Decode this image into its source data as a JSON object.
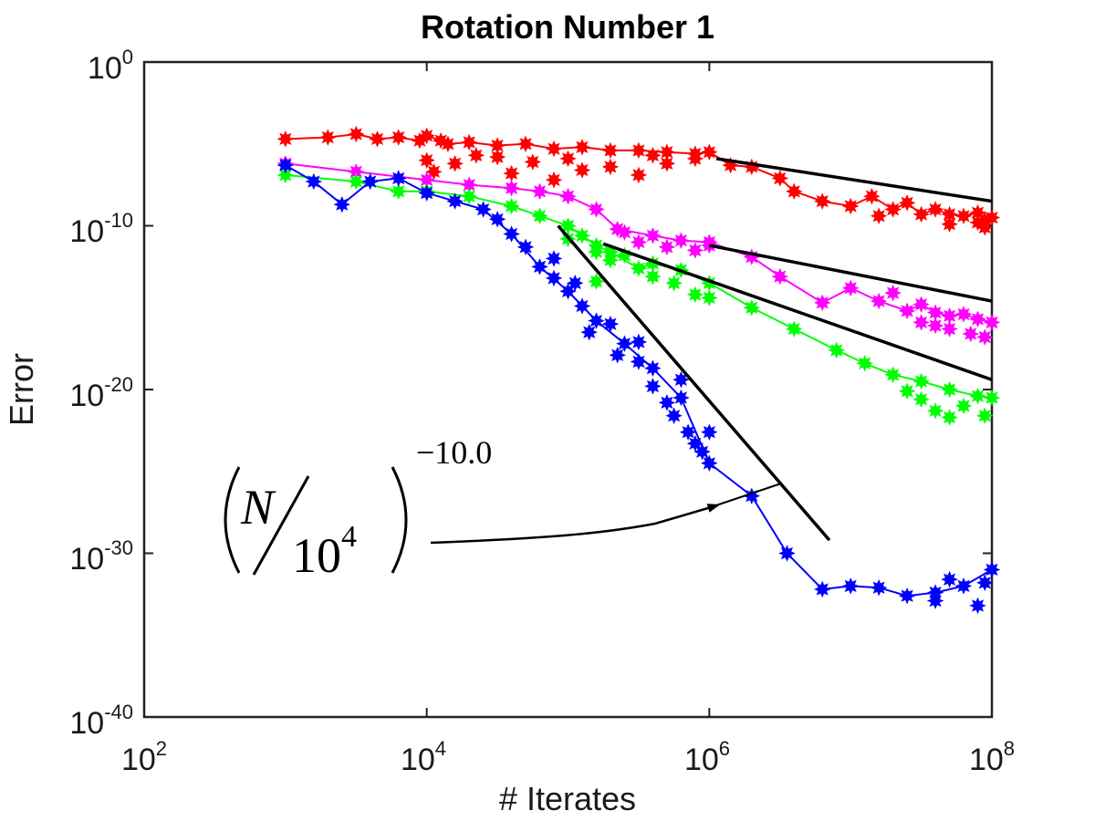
{
  "chart_data": {
    "type": "scatter",
    "title": "Rotation Number 1",
    "xlabel": "# Iterates",
    "ylabel": "Error",
    "xscale": "log",
    "yscale": "log",
    "xlim_exp": [
      2,
      8
    ],
    "ylim_exp": [
      -40,
      0
    ],
    "x_ticks": [
      {
        "base": "10",
        "exp": "2"
      },
      {
        "base": "10",
        "exp": "4"
      },
      {
        "base": "10",
        "exp": "6"
      },
      {
        "base": "10",
        "exp": "8"
      }
    ],
    "y_ticks": [
      {
        "base": "10",
        "exp": "0"
      },
      {
        "base": "10",
        "exp": "-10"
      },
      {
        "base": "10",
        "exp": "-20"
      },
      {
        "base": "10",
        "exp": "-30"
      },
      {
        "base": "10",
        "exp": "-40"
      }
    ],
    "series": [
      {
        "name": "red",
        "color": "#ff0000",
        "points": [
          [
            3.0,
            -4.7
          ],
          [
            3.3,
            -4.6
          ],
          [
            3.5,
            -4.4
          ],
          [
            3.65,
            -4.7
          ],
          [
            3.8,
            -4.6
          ],
          [
            3.95,
            -4.8
          ],
          [
            4.0,
            -4.5
          ],
          [
            4.1,
            -4.8
          ],
          [
            4.15,
            -5.0
          ],
          [
            4.3,
            -4.9
          ],
          [
            4.5,
            -5.1
          ],
          [
            4.7,
            -5.0
          ],
          [
            4.9,
            -5.3
          ],
          [
            5.1,
            -5.2
          ],
          [
            5.3,
            -5.4
          ],
          [
            5.5,
            -5.4
          ],
          [
            5.7,
            -5.5
          ],
          [
            5.9,
            -5.6
          ],
          [
            6.0,
            -5.5
          ],
          [
            6.15,
            -6.3
          ],
          [
            6.3,
            -6.4
          ],
          [
            6.5,
            -7.1
          ],
          [
            6.6,
            -7.9
          ],
          [
            6.8,
            -8.5
          ],
          [
            7.0,
            -8.8
          ],
          [
            7.15,
            -8.2
          ],
          [
            7.3,
            -9.0
          ],
          [
            7.4,
            -8.6
          ],
          [
            7.5,
            -9.3
          ],
          [
            7.6,
            -9.0
          ],
          [
            7.7,
            -9.3
          ],
          [
            7.8,
            -9.4
          ],
          [
            7.9,
            -9.2
          ],
          [
            7.95,
            -9.6
          ],
          [
            8.0,
            -9.5
          ]
        ],
        "scatter_fill": [
          [
            4.0,
            -6.0
          ],
          [
            4.05,
            -6.7
          ],
          [
            4.2,
            -6.2
          ],
          [
            4.35,
            -5.7
          ],
          [
            4.6,
            -6.8
          ],
          [
            4.75,
            -6.1
          ],
          [
            4.9,
            -7.2
          ],
          [
            5.1,
            -6.6
          ],
          [
            5.3,
            -6.4
          ],
          [
            5.5,
            -6.9
          ],
          [
            5.7,
            -6.2
          ],
          [
            5.9,
            -5.9
          ],
          [
            4.5,
            -5.8
          ],
          [
            5.0,
            -5.9
          ],
          [
            5.6,
            -5.7
          ],
          [
            7.9,
            -9.8
          ],
          [
            7.95,
            -10.1
          ],
          [
            7.7,
            -9.9
          ],
          [
            7.2,
            -9.4
          ]
        ]
      },
      {
        "name": "magenta",
        "color": "#ff00ff",
        "points": [
          [
            3.0,
            -6.2
          ],
          [
            3.5,
            -6.7
          ],
          [
            4.0,
            -7.2
          ],
          [
            4.3,
            -7.5
          ],
          [
            4.6,
            -7.7
          ],
          [
            4.8,
            -7.9
          ],
          [
            5.0,
            -8.2
          ],
          [
            5.2,
            -9.0
          ],
          [
            5.35,
            -10.2
          ],
          [
            5.6,
            -10.6
          ],
          [
            5.8,
            -10.9
          ],
          [
            6.0,
            -11.0
          ],
          [
            6.3,
            -11.9
          ],
          [
            6.5,
            -13.1
          ],
          [
            6.8,
            -14.7
          ],
          [
            7.0,
            -13.8
          ],
          [
            7.2,
            -14.6
          ],
          [
            7.4,
            -15.2
          ],
          [
            7.5,
            -14.8
          ],
          [
            7.6,
            -15.3
          ],
          [
            7.7,
            -15.5
          ],
          [
            7.8,
            -15.4
          ],
          [
            7.9,
            -15.7
          ],
          [
            8.0,
            -15.9
          ]
        ],
        "scatter_fill": [
          [
            5.4,
            -10.4
          ],
          [
            5.5,
            -11.0
          ],
          [
            5.7,
            -11.3
          ],
          [
            5.9,
            -11.5
          ],
          [
            6.0,
            -11.2
          ],
          [
            7.3,
            -14.1
          ],
          [
            7.5,
            -15.9
          ],
          [
            7.7,
            -16.3
          ],
          [
            7.85,
            -16.6
          ],
          [
            7.95,
            -16.8
          ],
          [
            7.6,
            -16.1
          ]
        ]
      },
      {
        "name": "green",
        "color": "#00ff00",
        "points": [
          [
            3.0,
            -6.9
          ],
          [
            3.5,
            -7.3
          ],
          [
            3.8,
            -7.9
          ],
          [
            4.0,
            -7.9
          ],
          [
            4.3,
            -8.2
          ],
          [
            4.6,
            -8.8
          ],
          [
            4.8,
            -9.4
          ],
          [
            5.0,
            -10.0
          ],
          [
            5.1,
            -10.6
          ],
          [
            5.2,
            -11.2
          ],
          [
            5.3,
            -11.6
          ],
          [
            5.5,
            -12.6
          ],
          [
            5.6,
            -12.3
          ],
          [
            5.8,
            -12.7
          ],
          [
            6.0,
            -13.5
          ],
          [
            6.3,
            -15.0
          ],
          [
            6.6,
            -16.3
          ],
          [
            6.9,
            -17.6
          ],
          [
            7.1,
            -18.4
          ],
          [
            7.3,
            -19.1
          ],
          [
            7.5,
            -19.5
          ],
          [
            7.7,
            -20.0
          ],
          [
            7.9,
            -20.4
          ],
          [
            8.0,
            -20.5
          ]
        ],
        "scatter_fill": [
          [
            5.0,
            -10.8
          ],
          [
            5.2,
            -11.6
          ],
          [
            5.3,
            -12.1
          ],
          [
            5.4,
            -11.8
          ],
          [
            5.6,
            -13.1
          ],
          [
            5.75,
            -13.5
          ],
          [
            5.9,
            -14.2
          ],
          [
            6.0,
            -14.4
          ],
          [
            5.2,
            -13.4
          ],
          [
            7.5,
            -20.6
          ],
          [
            7.6,
            -21.3
          ],
          [
            7.8,
            -21.0
          ],
          [
            7.95,
            -21.6
          ],
          [
            7.7,
            -21.7
          ],
          [
            7.4,
            -20.1
          ]
        ]
      },
      {
        "name": "blue",
        "color": "#0000ff",
        "points": [
          [
            3.0,
            -6.3
          ],
          [
            3.2,
            -7.3
          ],
          [
            3.4,
            -8.7
          ],
          [
            3.6,
            -7.3
          ],
          [
            3.8,
            -7.1
          ],
          [
            4.0,
            -8.0
          ],
          [
            4.2,
            -8.5
          ],
          [
            4.4,
            -9.0
          ],
          [
            4.6,
            -10.5
          ],
          [
            4.8,
            -12.5
          ],
          [
            5.0,
            -14.0
          ],
          [
            5.2,
            -15.8
          ],
          [
            5.4,
            -17.2
          ],
          [
            5.6,
            -18.7
          ],
          [
            5.8,
            -20.5
          ],
          [
            6.0,
            -24.5
          ],
          [
            6.3,
            -26.5
          ],
          [
            6.55,
            -30.0
          ],
          [
            6.8,
            -32.2
          ],
          [
            7.0,
            -32.0
          ],
          [
            7.2,
            -32.1
          ],
          [
            7.4,
            -32.6
          ],
          [
            7.6,
            -32.4
          ],
          [
            7.8,
            -32.0
          ],
          [
            8.0,
            -31.0
          ]
        ],
        "scatter_fill": [
          [
            4.5,
            -9.6
          ],
          [
            4.7,
            -11.3
          ],
          [
            4.9,
            -13.2
          ],
          [
            5.1,
            -14.9
          ],
          [
            5.15,
            -16.5
          ],
          [
            5.3,
            -16.0
          ],
          [
            5.35,
            -17.9
          ],
          [
            5.5,
            -18.3
          ],
          [
            5.6,
            -19.8
          ],
          [
            5.7,
            -20.8
          ],
          [
            5.75,
            -21.6
          ],
          [
            5.85,
            -22.6
          ],
          [
            5.9,
            -23.3
          ],
          [
            5.95,
            -23.8
          ],
          [
            6.0,
            -22.6
          ],
          [
            5.5,
            -17.1
          ],
          [
            5.8,
            -19.4
          ],
          [
            4.9,
            -12.0
          ],
          [
            5.05,
            -13.5
          ],
          [
            7.6,
            -32.9
          ],
          [
            7.9,
            -33.2
          ],
          [
            7.95,
            -31.8
          ],
          [
            7.7,
            -31.6
          ]
        ]
      }
    ],
    "reference_lines": [
      {
        "name": "red-slope",
        "from": [
          6.05,
          -5.9
        ],
        "to": [
          8.0,
          -8.5
        ]
      },
      {
        "name": "magenta-slope",
        "from": [
          6.0,
          -11.2
        ],
        "to": [
          8.0,
          -14.6
        ]
      },
      {
        "name": "green-slope",
        "from": [
          5.25,
          -11.1
        ],
        "to": [
          8.0,
          -19.4
        ]
      },
      {
        "name": "blue-slope",
        "from": [
          4.93,
          -10.0
        ],
        "to": [
          6.85,
          -29.2
        ]
      }
    ],
    "annotation": {
      "numerator": "N",
      "denominator_base": "10",
      "denominator_exp": "4",
      "exponent": "−10.0",
      "arrow_target": "blue-slope"
    }
  }
}
